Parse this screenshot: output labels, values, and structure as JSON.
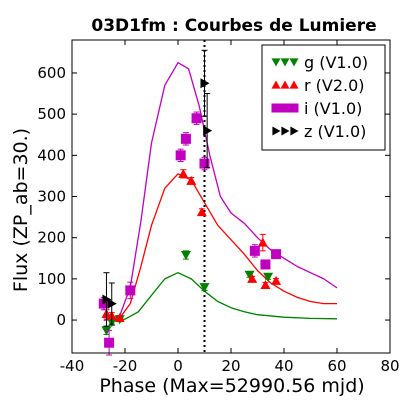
{
  "chart_data": {
    "type": "scatter",
    "title": "03D1fm : Courbes de Lumiere",
    "xlabel": "Phase (Max=52990.56 mjd)",
    "ylabel": "Flux (ZP_ab=30.)",
    "xlim": [
      -40,
      80
    ],
    "ylim": [
      -80,
      680
    ],
    "xticks": [
      -40,
      -20,
      0,
      20,
      40,
      60,
      80
    ],
    "yticks": [
      0,
      100,
      200,
      300,
      400,
      500,
      600
    ],
    "grid": false,
    "legend_position": "top-right",
    "vertical_line": {
      "x": 10,
      "style": "dotted",
      "color": "#000000"
    },
    "series": [
      {
        "name": "g (V1.0)",
        "color": "#008000",
        "marker": "triangle-down",
        "points": [
          {
            "x": -27,
            "y": -25,
            "err": 10
          },
          {
            "x": -25,
            "y": -5,
            "err": 8
          },
          {
            "x": -22,
            "y": 2,
            "err": 6
          },
          {
            "x": 3,
            "y": 158,
            "err": 10
          },
          {
            "x": 10,
            "y": 80,
            "err": 8
          },
          {
            "x": 27,
            "y": 110,
            "err": 6
          },
          {
            "x": 34,
            "y": 105,
            "err": 6
          }
        ],
        "model": [
          [
            -28,
            0
          ],
          [
            -20,
            2
          ],
          [
            -15,
            20
          ],
          [
            -10,
            60
          ],
          [
            -5,
            100
          ],
          [
            0,
            115
          ],
          [
            5,
            100
          ],
          [
            10,
            70
          ],
          [
            15,
            45
          ],
          [
            20,
            30
          ],
          [
            25,
            20
          ],
          [
            30,
            13
          ],
          [
            40,
            7
          ],
          [
            50,
            4
          ],
          [
            60,
            3
          ]
        ]
      },
      {
        "name": "r (V2.0)",
        "color": "#ff0000",
        "marker": "triangle-up",
        "points": [
          {
            "x": -27,
            "y": 15,
            "err": 10
          },
          {
            "x": -25,
            "y": 10,
            "err": 8
          },
          {
            "x": -22,
            "y": 5,
            "err": 6
          },
          {
            "x": 2,
            "y": 355,
            "err": 10
          },
          {
            "x": 5,
            "y": 338,
            "err": 8
          },
          {
            "x": 9,
            "y": 262,
            "err": 8
          },
          {
            "x": 28,
            "y": 100,
            "err": 6
          },
          {
            "x": 32,
            "y": 188,
            "err": 20
          },
          {
            "x": 33,
            "y": 85,
            "err": 6
          },
          {
            "x": 37,
            "y": 95,
            "err": 6
          }
        ],
        "model": [
          [
            -28,
            0
          ],
          [
            -22,
            5
          ],
          [
            -18,
            40
          ],
          [
            -14,
            130
          ],
          [
            -10,
            230
          ],
          [
            -5,
            320
          ],
          [
            0,
            355
          ],
          [
            5,
            340
          ],
          [
            10,
            285
          ],
          [
            15,
            230
          ],
          [
            20,
            195
          ],
          [
            25,
            160
          ],
          [
            30,
            120
          ],
          [
            35,
            90
          ],
          [
            40,
            70
          ],
          [
            45,
            55
          ],
          [
            50,
            45
          ],
          [
            55,
            40
          ],
          [
            60,
            40
          ]
        ]
      },
      {
        "name": "i (V1.0)",
        "color": "#bf00bf",
        "marker": "square",
        "points": [
          {
            "x": -28,
            "y": 40,
            "err": 15
          },
          {
            "x": -26,
            "y": -55,
            "err": 30
          },
          {
            "x": -18,
            "y": 72,
            "err": 20
          },
          {
            "x": 1,
            "y": 400,
            "err": 15
          },
          {
            "x": 3,
            "y": 440,
            "err": 15
          },
          {
            "x": 7,
            "y": 490,
            "err": 15
          },
          {
            "x": 10,
            "y": 380,
            "err": 15
          },
          {
            "x": 29,
            "y": 168,
            "err": 15
          },
          {
            "x": 33,
            "y": 135,
            "err": 10
          },
          {
            "x": 37,
            "y": 160,
            "err": 10
          }
        ],
        "model": [
          [
            -28,
            0
          ],
          [
            -22,
            10
          ],
          [
            -18,
            80
          ],
          [
            -14,
            240
          ],
          [
            -10,
            430
          ],
          [
            -5,
            570
          ],
          [
            0,
            625
          ],
          [
            4,
            610
          ],
          [
            8,
            520
          ],
          [
            12,
            400
          ],
          [
            16,
            300
          ],
          [
            20,
            260
          ],
          [
            25,
            235
          ],
          [
            30,
            200
          ],
          [
            35,
            170
          ],
          [
            40,
            150
          ],
          [
            45,
            130
          ],
          [
            50,
            115
          ],
          [
            55,
            100
          ],
          [
            60,
            78
          ]
        ]
      },
      {
        "name": "z (V1.0)",
        "color": "#000000",
        "marker": "triangle-right",
        "points": [
          {
            "x": -27,
            "y": 50,
            "err": 65
          },
          {
            "x": -25,
            "y": 40,
            "err": 50
          },
          {
            "x": 10,
            "y": 575,
            "err": 80
          },
          {
            "x": 11,
            "y": 460,
            "err": 90
          }
        ],
        "model": []
      }
    ]
  }
}
